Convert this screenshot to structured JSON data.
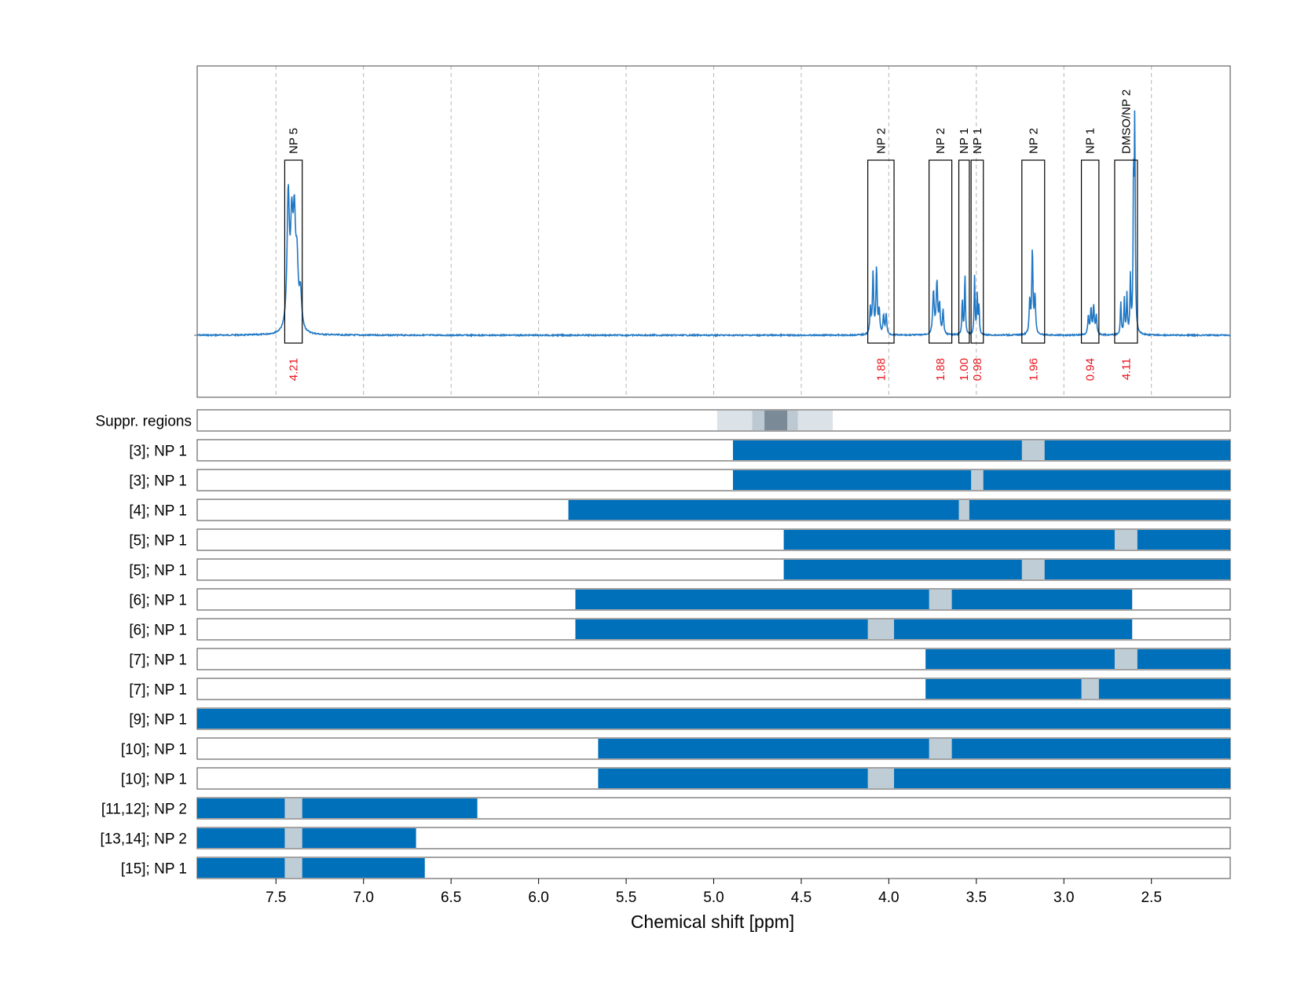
{
  "chart_data": {
    "type": "line",
    "xlabel": "Chemical shift [ppm]",
    "xlim": [
      7.95,
      2.05
    ],
    "xticks": [
      7.5,
      7.0,
      6.5,
      6.0,
      5.5,
      5.0,
      4.5,
      4.0,
      3.5,
      3.0,
      2.5
    ],
    "xtick_labels": [
      "7.5",
      "7.0",
      "6.5",
      "6.0",
      "5.5",
      "5.0",
      "4.5",
      "4.0",
      "3.5",
      "3.0",
      "2.5"
    ],
    "grid": "vertical-dashed",
    "colors": {
      "spectrum": "#1f77c4",
      "bar": "#0070bb",
      "gap": "#bfcdd6",
      "integral": "#e8141c",
      "frame": "#666666"
    },
    "spectrum_peaks": [
      {
        "ppm": 7.43,
        "height": 0.56,
        "width": 0.008
      },
      {
        "ppm": 7.41,
        "height": 0.4,
        "width": 0.008
      },
      {
        "ppm": 7.395,
        "height": 0.42,
        "width": 0.008
      },
      {
        "ppm": 7.38,
        "height": 0.26,
        "width": 0.008
      },
      {
        "ppm": 7.36,
        "height": 0.15,
        "width": 0.008
      },
      {
        "ppm": 4.105,
        "height": 0.11,
        "width": 0.004
      },
      {
        "ppm": 4.09,
        "height": 0.26,
        "width": 0.004
      },
      {
        "ppm": 4.07,
        "height": 0.28,
        "width": 0.004
      },
      {
        "ppm": 4.055,
        "height": 0.1,
        "width": 0.004
      },
      {
        "ppm": 4.03,
        "height": 0.08,
        "width": 0.004
      },
      {
        "ppm": 4.015,
        "height": 0.09,
        "width": 0.004
      },
      {
        "ppm": 3.745,
        "height": 0.18,
        "width": 0.005
      },
      {
        "ppm": 3.725,
        "height": 0.22,
        "width": 0.005
      },
      {
        "ppm": 3.71,
        "height": 0.12,
        "width": 0.004
      },
      {
        "ppm": 3.69,
        "height": 0.1,
        "width": 0.004
      },
      {
        "ppm": 3.58,
        "height": 0.15,
        "width": 0.003
      },
      {
        "ppm": 3.565,
        "height": 0.26,
        "width": 0.003
      },
      {
        "ppm": 3.51,
        "height": 0.25,
        "width": 0.003
      },
      {
        "ppm": 3.495,
        "height": 0.17,
        "width": 0.003
      },
      {
        "ppm": 3.485,
        "height": 0.12,
        "width": 0.003
      },
      {
        "ppm": 3.195,
        "height": 0.14,
        "width": 0.004
      },
      {
        "ppm": 3.18,
        "height": 0.36,
        "width": 0.004
      },
      {
        "ppm": 3.165,
        "height": 0.16,
        "width": 0.004
      },
      {
        "ppm": 2.86,
        "height": 0.08,
        "width": 0.004
      },
      {
        "ppm": 2.845,
        "height": 0.11,
        "width": 0.004
      },
      {
        "ppm": 2.83,
        "height": 0.12,
        "width": 0.004
      },
      {
        "ppm": 2.815,
        "height": 0.08,
        "width": 0.004
      },
      {
        "ppm": 2.675,
        "height": 0.14,
        "width": 0.003
      },
      {
        "ppm": 2.655,
        "height": 0.15,
        "width": 0.003
      },
      {
        "ppm": 2.64,
        "height": 0.17,
        "width": 0.003
      },
      {
        "ppm": 2.62,
        "height": 0.24,
        "width": 0.003
      },
      {
        "ppm": 2.602,
        "height": 0.66,
        "width": 0.003
      },
      {
        "ppm": 2.595,
        "height": 0.88,
        "width": 0.003
      }
    ],
    "regions": [
      {
        "label": "NP 5",
        "from": 7.45,
        "to": 7.35,
        "integral": "4.21"
      },
      {
        "label": "NP 2",
        "from": 4.12,
        "to": 3.97,
        "integral": "1.88"
      },
      {
        "label": "NP 2",
        "from": 3.77,
        "to": 3.64,
        "integral": "1.88"
      },
      {
        "label": "NP 1",
        "from": 3.6,
        "to": 3.54,
        "integral": "1.00"
      },
      {
        "label": "NP 1",
        "from": 3.53,
        "to": 3.46,
        "integral": "0.98"
      },
      {
        "label": "NP 2",
        "from": 3.24,
        "to": 3.11,
        "integral": "1.96"
      },
      {
        "label": "NP 1",
        "from": 2.9,
        "to": 2.8,
        "integral": "0.94"
      },
      {
        "label": "DMSO/NP 2",
        "from": 2.71,
        "to": 2.58,
        "integral": "4.11"
      }
    ],
    "suppression": {
      "label": "Suppr. regions",
      "bands": [
        {
          "from": 4.98,
          "to": 4.32,
          "color": "#dbe2e8"
        },
        {
          "from": 4.78,
          "to": 4.52,
          "color": "#bcc8d2"
        },
        {
          "from": 4.71,
          "to": 4.58,
          "color": "#7a8a97"
        }
      ]
    },
    "rows": [
      {
        "label": "[3]; NP 1",
        "bar_from": 4.89,
        "bar_to": 2.05,
        "gap_from": 3.24,
        "gap_to": 3.11
      },
      {
        "label": "[3]; NP 1",
        "bar_from": 4.89,
        "bar_to": 2.05,
        "gap_from": 3.53,
        "gap_to": 3.46
      },
      {
        "label": "[4]; NP 1",
        "bar_from": 5.83,
        "bar_to": 2.05,
        "gap_from": 3.6,
        "gap_to": 3.54
      },
      {
        "label": "[5]; NP 1",
        "bar_from": 4.6,
        "bar_to": 2.05,
        "gap_from": 2.71,
        "gap_to": 2.58
      },
      {
        "label": "[5]; NP 1",
        "bar_from": 4.6,
        "bar_to": 2.05,
        "gap_from": 3.24,
        "gap_to": 3.11
      },
      {
        "label": "[6]; NP 1",
        "bar_from": 5.79,
        "bar_to": 2.61,
        "gap_from": 3.77,
        "gap_to": 3.64
      },
      {
        "label": "[6]; NP 1",
        "bar_from": 5.79,
        "bar_to": 2.61,
        "gap_from": 4.12,
        "gap_to": 3.97
      },
      {
        "label": "[7]; NP 1",
        "bar_from": 3.79,
        "bar_to": 2.05,
        "gap_from": 2.71,
        "gap_to": 2.58
      },
      {
        "label": "[7]; NP 1",
        "bar_from": 3.79,
        "bar_to": 2.05,
        "gap_from": 2.9,
        "gap_to": 2.8
      },
      {
        "label": "[9]; NP 1",
        "bar_from": 7.95,
        "bar_to": 2.05,
        "gap_from": null,
        "gap_to": null
      },
      {
        "label": "[10]; NP 1",
        "bar_from": 5.66,
        "bar_to": 2.05,
        "gap_from": 3.77,
        "gap_to": 3.64
      },
      {
        "label": "[10]; NP 1",
        "bar_from": 5.66,
        "bar_to": 2.05,
        "gap_from": 4.12,
        "gap_to": 3.97
      },
      {
        "label": "[11,12]; NP 2",
        "bar_from": 7.95,
        "bar_to": 6.35,
        "gap_from": 7.45,
        "gap_to": 7.35
      },
      {
        "label": "[13,14]; NP 2",
        "bar_from": 7.95,
        "bar_to": 6.7,
        "gap_from": 7.45,
        "gap_to": 7.35
      },
      {
        "label": "[15]; NP 1",
        "bar_from": 7.95,
        "bar_to": 6.65,
        "gap_from": 7.45,
        "gap_to": 7.35
      }
    ]
  }
}
